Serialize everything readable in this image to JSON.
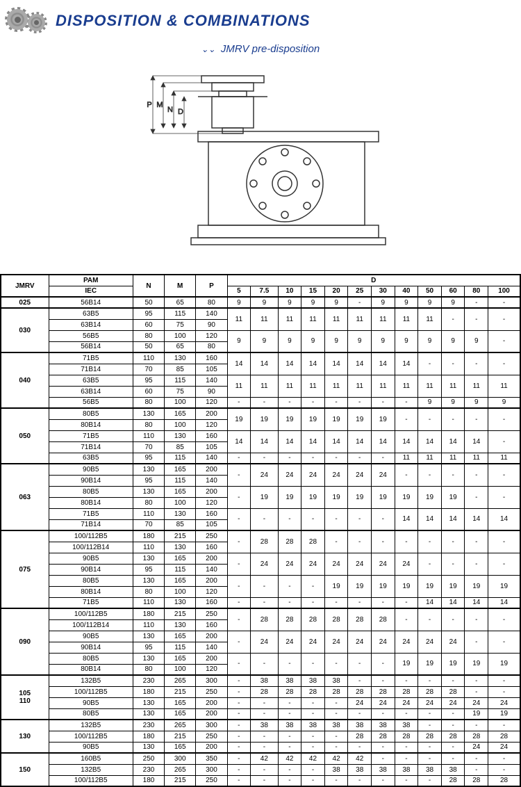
{
  "title": "DISPOSITION & COMBINATIONS",
  "subtitle": "JMRV pre-disposition",
  "cols": {
    "jmrv": "JMRV",
    "pam": "PAM",
    "iec": "IEC",
    "n": "N",
    "m": "M",
    "p": "P",
    "d": "D",
    "d5": "5",
    "d75": "7.5",
    "d10": "10",
    "d15": "15",
    "d20": "20",
    "d25": "25",
    "d30": "30",
    "d40": "40",
    "d50": "50",
    "d60": "60",
    "d80": "80",
    "d100": "100"
  },
  "dimLabels": [
    "P",
    "M",
    "N",
    "D"
  ],
  "groups": [
    {
      "jmrv": "025",
      "rows": [
        {
          "iec": "56B14",
          "n": "50",
          "m": "65",
          "p": "80",
          "d": [
            "9",
            "9",
            "9",
            "9",
            "9",
            "-",
            "9",
            "9",
            "9",
            "9",
            "-",
            "-"
          ]
        }
      ]
    },
    {
      "jmrv": "030",
      "rows": [
        {
          "iec": "63B5",
          "n": "95",
          "m": "115",
          "p": "140",
          "d": [
            "11",
            "11",
            "11",
            "11",
            "11",
            "11",
            "11",
            "11",
            "11",
            "-",
            "-",
            "-"
          ],
          "span": 2
        },
        {
          "iec": "63B14",
          "n": "60",
          "m": "75",
          "p": "90"
        },
        {
          "iec": "56B5",
          "n": "80",
          "m": "100",
          "p": "120",
          "d": [
            "9",
            "9",
            "9",
            "9",
            "9",
            "9",
            "9",
            "9",
            "9",
            "9",
            "9",
            "-"
          ],
          "span": 2
        },
        {
          "iec": "56B14",
          "n": "50",
          "m": "65",
          "p": "80"
        }
      ]
    },
    {
      "jmrv": "040",
      "rows": [
        {
          "iec": "71B5",
          "n": "110",
          "m": "130",
          "p": "160",
          "d": [
            "14",
            "14",
            "14",
            "14",
            "14",
            "14",
            "14",
            "14",
            "-",
            "-",
            "-",
            "-"
          ],
          "span": 2
        },
        {
          "iec": "71B14",
          "n": "70",
          "m": "85",
          "p": "105"
        },
        {
          "iec": "63B5",
          "n": "95",
          "m": "115",
          "p": "140",
          "d": [
            "11",
            "11",
            "11",
            "11",
            "11",
            "11",
            "11",
            "11",
            "11",
            "11",
            "11",
            "11"
          ],
          "span": 2
        },
        {
          "iec": "63B14",
          "n": "60",
          "m": "75",
          "p": "90"
        },
        {
          "iec": "56B5",
          "n": "80",
          "m": "100",
          "p": "120",
          "d": [
            "-",
            "-",
            "-",
            "-",
            "-",
            "-",
            "-",
            "-",
            "9",
            "9",
            "9",
            "9"
          ]
        }
      ]
    },
    {
      "jmrv": "050",
      "rows": [
        {
          "iec": "80B5",
          "n": "130",
          "m": "165",
          "p": "200",
          "d": [
            "19",
            "19",
            "19",
            "19",
            "19",
            "19",
            "19",
            "-",
            "-",
            "-",
            "-",
            "-"
          ],
          "span": 2
        },
        {
          "iec": "80B14",
          "n": "80",
          "m": "100",
          "p": "120"
        },
        {
          "iec": "71B5",
          "n": "110",
          "m": "130",
          "p": "160",
          "d": [
            "14",
            "14",
            "14",
            "14",
            "14",
            "14",
            "14",
            "14",
            "14",
            "14",
            "14",
            "-"
          ],
          "span": 2
        },
        {
          "iec": "71B14",
          "n": "70",
          "m": "85",
          "p": "105"
        },
        {
          "iec": "63B5",
          "n": "95",
          "m": "115",
          "p": "140",
          "d": [
            "-",
            "-",
            "-",
            "-",
            "-",
            "-",
            "-",
            "11",
            "11",
            "11",
            "11",
            "11"
          ]
        }
      ]
    },
    {
      "jmrv": "063",
      "rows": [
        {
          "iec": "90B5",
          "n": "130",
          "m": "165",
          "p": "200",
          "d": [
            "-",
            "24",
            "24",
            "24",
            "24",
            "24",
            "24",
            "-",
            "-",
            "-",
            "-",
            "-"
          ],
          "span": 2
        },
        {
          "iec": "90B14",
          "n": "95",
          "m": "115",
          "p": "140"
        },
        {
          "iec": "80B5",
          "n": "130",
          "m": "165",
          "p": "200",
          "d": [
            "-",
            "19",
            "19",
            "19",
            "19",
            "19",
            "19",
            "19",
            "19",
            "19",
            "-",
            "-"
          ],
          "span": 2
        },
        {
          "iec": "80B14",
          "n": "80",
          "m": "100",
          "p": "120"
        },
        {
          "iec": "71B5",
          "n": "110",
          "m": "130",
          "p": "160",
          "d": [
            "-",
            "-",
            "-",
            "-",
            "-",
            "-",
            "-",
            "14",
            "14",
            "14",
            "14",
            "14"
          ],
          "span": 2
        },
        {
          "iec": "71B14",
          "n": "70",
          "m": "85",
          "p": "105"
        }
      ]
    },
    {
      "jmrv": "075",
      "rows": [
        {
          "iec": "100/112B5",
          "n": "180",
          "m": "215",
          "p": "250",
          "d": [
            "-",
            "28",
            "28",
            "28",
            "-",
            "-",
            "-",
            "-",
            "-",
            "-",
            "-",
            "-"
          ],
          "span": 2
        },
        {
          "iec": "100/112B14",
          "n": "110",
          "m": "130",
          "p": "160"
        },
        {
          "iec": "90B5",
          "n": "130",
          "m": "165",
          "p": "200",
          "d": [
            "-",
            "24",
            "24",
            "24",
            "24",
            "24",
            "24",
            "24",
            "-",
            "-",
            "-",
            "-"
          ],
          "span": 2
        },
        {
          "iec": "90B14",
          "n": "95",
          "m": "115",
          "p": "140"
        },
        {
          "iec": "80B5",
          "n": "130",
          "m": "165",
          "p": "200",
          "d": [
            "-",
            "-",
            "-",
            "-",
            "19",
            "19",
            "19",
            "19",
            "19",
            "19",
            "19",
            "19"
          ],
          "span": 2
        },
        {
          "iec": "80B14",
          "n": "80",
          "m": "100",
          "p": "120"
        },
        {
          "iec": "71B5",
          "n": "110",
          "m": "130",
          "p": "160",
          "d": [
            "-",
            "-",
            "-",
            "-",
            "-",
            "-",
            "-",
            "-",
            "14",
            "14",
            "14",
            "14"
          ]
        }
      ]
    },
    {
      "jmrv": "090",
      "rows": [
        {
          "iec": "100/112B5",
          "n": "180",
          "m": "215",
          "p": "250",
          "d": [
            "-",
            "28",
            "28",
            "28",
            "28",
            "28",
            "28",
            "-",
            "-",
            "-",
            "-",
            "-"
          ],
          "span": 2
        },
        {
          "iec": "100/112B14",
          "n": "110",
          "m": "130",
          "p": "160"
        },
        {
          "iec": "90B5",
          "n": "130",
          "m": "165",
          "p": "200",
          "d": [
            "-",
            "24",
            "24",
            "24",
            "24",
            "24",
            "24",
            "24",
            "24",
            "24",
            "-",
            "-"
          ],
          "span": 2
        },
        {
          "iec": "90B14",
          "n": "95",
          "m": "115",
          "p": "140"
        },
        {
          "iec": "80B5",
          "n": "130",
          "m": "165",
          "p": "200",
          "d": [
            "-",
            "-",
            "-",
            "-",
            "-",
            "-",
            "-",
            "19",
            "19",
            "19",
            "19",
            "19"
          ],
          "span": 2
        },
        {
          "iec": "80B14",
          "n": "80",
          "m": "100",
          "p": "120"
        }
      ]
    },
    {
      "jmrv": "105\n110",
      "rows": [
        {
          "iec": "132B5",
          "n": "230",
          "m": "265",
          "p": "300",
          "d": [
            "-",
            "38",
            "38",
            "38",
            "38",
            "-",
            "-",
            "-",
            "-",
            "-",
            "-",
            "-"
          ]
        },
        {
          "iec": "100/112B5",
          "n": "180",
          "m": "215",
          "p": "250",
          "d": [
            "-",
            "28",
            "28",
            "28",
            "28",
            "28",
            "28",
            "28",
            "28",
            "28",
            "-",
            "-"
          ]
        },
        {
          "iec": "90B5",
          "n": "130",
          "m": "165",
          "p": "200",
          "d": [
            "-",
            "-",
            "-",
            "-",
            "-",
            "24",
            "24",
            "24",
            "24",
            "24",
            "24",
            "24"
          ]
        },
        {
          "iec": "80B5",
          "n": "130",
          "m": "165",
          "p": "200",
          "d": [
            "-",
            "-",
            "-",
            "-",
            "-",
            "-",
            "-",
            "-",
            "-",
            "-",
            "19",
            "19"
          ]
        }
      ]
    },
    {
      "jmrv": "130",
      "rows": [
        {
          "iec": "132B5",
          "n": "230",
          "m": "265",
          "p": "300",
          "d": [
            "-",
            "38",
            "38",
            "38",
            "38",
            "38",
            "38",
            "38",
            "-",
            "-",
            "-",
            "-"
          ]
        },
        {
          "iec": "100/112B5",
          "n": "180",
          "m": "215",
          "p": "250",
          "d": [
            "-",
            "-",
            "-",
            "-",
            "-",
            "28",
            "28",
            "28",
            "28",
            "28",
            "28",
            "28"
          ]
        },
        {
          "iec": "90B5",
          "n": "130",
          "m": "165",
          "p": "200",
          "d": [
            "-",
            "-",
            "-",
            "-",
            "-",
            "-",
            "-",
            "-",
            "-",
            "-",
            "24",
            "24"
          ]
        }
      ]
    },
    {
      "jmrv": "150",
      "rows": [
        {
          "iec": "160B5",
          "n": "250",
          "m": "300",
          "p": "350",
          "d": [
            "-",
            "42",
            "42",
            "42",
            "42",
            "42",
            "-",
            "-",
            "-",
            "-",
            "-",
            "-"
          ]
        },
        {
          "iec": "132B5",
          "n": "230",
          "m": "265",
          "p": "300",
          "d": [
            "-",
            "-",
            "-",
            "-",
            "38",
            "38",
            "38",
            "38",
            "38",
            "38",
            "-",
            "-"
          ]
        },
        {
          "iec": "100/112B5",
          "n": "180",
          "m": "215",
          "p": "250",
          "d": [
            "-",
            "-",
            "-",
            "-",
            "-",
            "-",
            "-",
            "-",
            "-",
            "28",
            "28",
            "28"
          ]
        }
      ]
    }
  ]
}
